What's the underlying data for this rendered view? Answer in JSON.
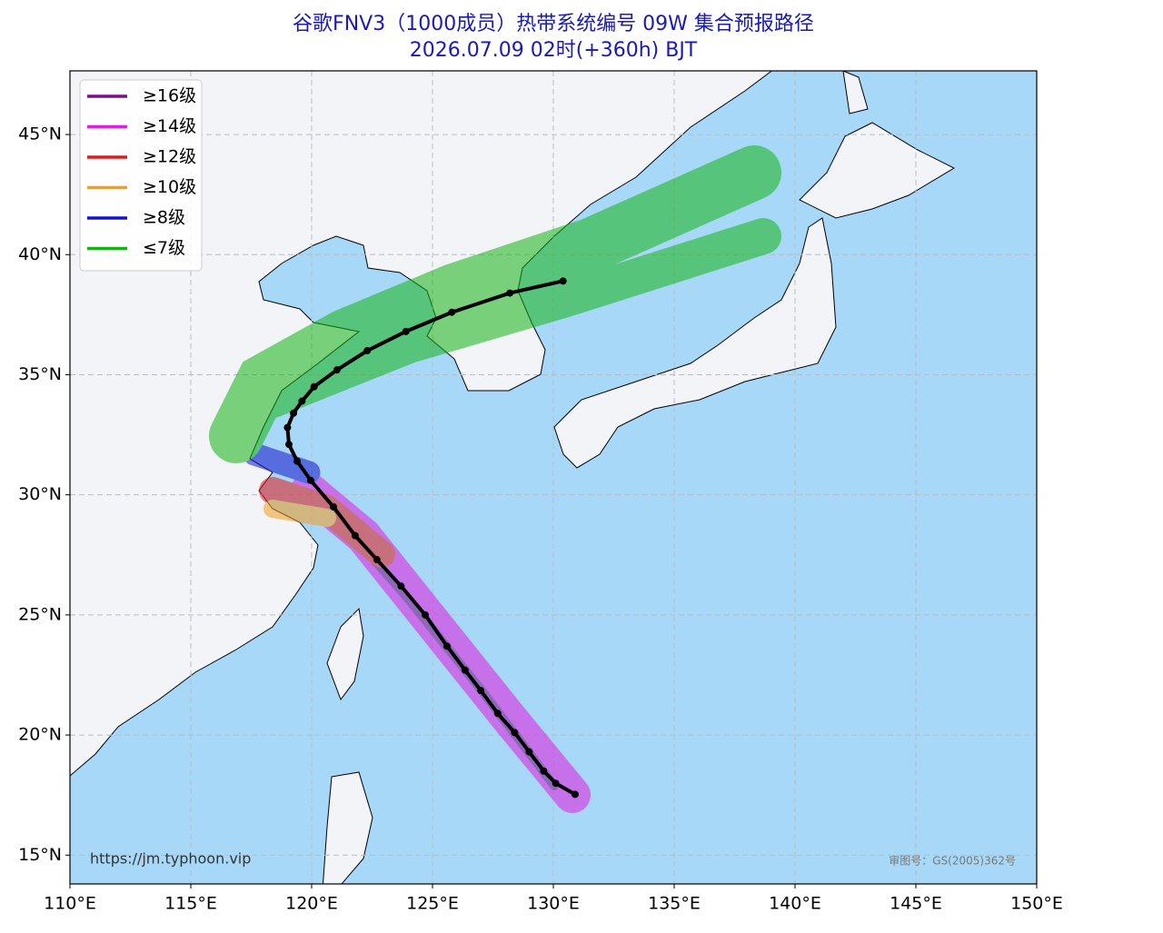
{
  "chart_data": {
    "type": "line",
    "title": "谷歌FNV3（1000成员）热带系统编号 09W 集合预报路径",
    "subtitle": "2026.07.09 02时(+360h) BJT",
    "xlim": [
      110,
      150
    ],
    "ylim": [
      13.8,
      47.65
    ],
    "xticks": [
      {
        "value": 110,
        "label": "110°E"
      },
      {
        "value": 115,
        "label": "115°E"
      },
      {
        "value": 120,
        "label": "120°E"
      },
      {
        "value": 125,
        "label": "125°E"
      },
      {
        "value": 130,
        "label": "130°E"
      },
      {
        "value": 135,
        "label": "135°E"
      },
      {
        "value": 140,
        "label": "140°E"
      },
      {
        "value": 145,
        "label": "145°E"
      },
      {
        "value": 150,
        "label": "150°E"
      }
    ],
    "yticks": [
      {
        "value": 15,
        "label": "15°N"
      },
      {
        "value": 20,
        "label": "20°N"
      },
      {
        "value": 25,
        "label": "25°N"
      },
      {
        "value": 30,
        "label": "30°N"
      },
      {
        "value": 35,
        "label": "35°N"
      },
      {
        "value": 40,
        "label": "40°N"
      },
      {
        "value": 45,
        "label": "45°N"
      }
    ],
    "grid": true,
    "legend_position": "upper left",
    "legend": [
      {
        "name": "≥16级",
        "color": "#7a0f86"
      },
      {
        "name": "≥14级",
        "color": "#e01ee0"
      },
      {
        "name": "≥12级",
        "color": "#e31a1c"
      },
      {
        "name": "≥10级",
        "color": "#f39c1f"
      },
      {
        "name": "≥8级",
        "color": "#1414cc"
      },
      {
        "name": "≤7级",
        "color": "#14b414"
      }
    ],
    "track": {
      "color": "#000000",
      "x": [
        130.9,
        130.1,
        129.6,
        129.0,
        128.4,
        127.7,
        127.0,
        126.35,
        125.6,
        124.7,
        123.7,
        122.7,
        121.8,
        120.9,
        119.96,
        119.4,
        119.06,
        119.0,
        119.25,
        119.6,
        120.1,
        121.05,
        122.3,
        123.9,
        125.8,
        128.2,
        130.4
      ],
      "y": [
        17.53,
        17.99,
        18.5,
        19.3,
        20.1,
        20.9,
        21.85,
        22.7,
        23.7,
        25.0,
        26.2,
        27.3,
        28.3,
        29.5,
        30.6,
        31.4,
        32.1,
        32.8,
        33.4,
        33.9,
        34.5,
        35.2,
        36.0,
        36.8,
        37.6,
        38.4,
        38.9
      ]
    },
    "source": "https://jm.typhoon.vip",
    "map_approval": "审图号：GS(2005)362号"
  }
}
